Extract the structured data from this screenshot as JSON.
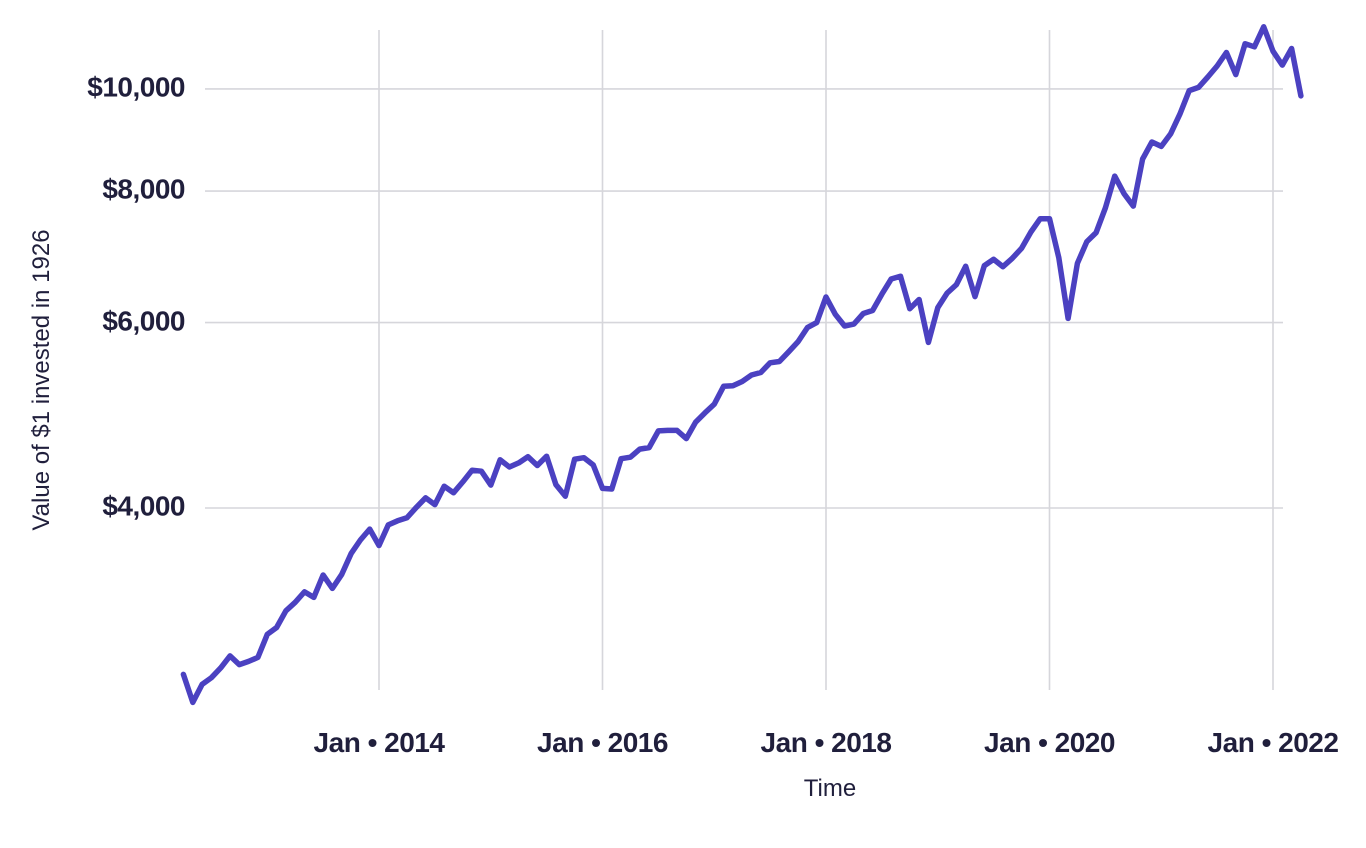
{
  "chart": {
    "y_axis_label": "Value of $1 invested in 1926",
    "x_axis_label": "Time",
    "colors": {
      "line": "#4b41c1",
      "grid": "#d6d6db",
      "text": "#201f3c",
      "background": "#ffffff"
    }
  },
  "chart_data": {
    "type": "line",
    "title": "",
    "xlabel": "Time",
    "ylabel": "Value of $1 invested in 1926",
    "y_scale": "log",
    "grid": true,
    "legend": false,
    "x_ticks": [
      {
        "label": "Jan • 2014",
        "month": "2014-01"
      },
      {
        "label": "Jan • 2016",
        "month": "2016-01"
      },
      {
        "label": "Jan • 2018",
        "month": "2018-01"
      },
      {
        "label": "Jan • 2020",
        "month": "2020-01"
      },
      {
        "label": "Jan • 2022",
        "month": "2022-01"
      }
    ],
    "y_ticks": [
      {
        "label": "$4,000",
        "value": 4000
      },
      {
        "label": "$6,000",
        "value": 6000
      },
      {
        "label": "$8,000",
        "value": 8000
      },
      {
        "label": "$10,000",
        "value": 10000
      }
    ],
    "series": [
      {
        "name": "Value of $1 invested in 1926",
        "frequency": "monthly",
        "start_month": "2012-04",
        "end_month": "2022-04",
        "values": [
          2780,
          2615,
          2720,
          2760,
          2820,
          2895,
          2840,
          2860,
          2885,
          3035,
          3080,
          3195,
          3255,
          3330,
          3290,
          3455,
          3355,
          3460,
          3620,
          3730,
          3820,
          3685,
          3855,
          3890,
          3915,
          4005,
          4090,
          4030,
          4195,
          4135,
          4235,
          4345,
          4335,
          4205,
          4445,
          4375,
          4415,
          4475,
          4390,
          4480,
          4210,
          4105,
          4450,
          4465,
          4395,
          4175,
          4170,
          4455,
          4470,
          4550,
          4565,
          4735,
          4740,
          4740,
          4655,
          4825,
          4925,
          5020,
          5220,
          5225,
          5275,
          5350,
          5380,
          5495,
          5510,
          5630,
          5755,
          5935,
          6000,
          6345,
          6110,
          5955,
          5980,
          6120,
          6160,
          6385,
          6600,
          6640,
          6185,
          6310,
          5745,
          6200,
          6400,
          6520,
          6785,
          6350,
          6795,
          6890,
          6780,
          6905,
          7060,
          7315,
          7530,
          7530,
          6915,
          6055,
          6830,
          7160,
          7305,
          7710,
          8265,
          7955,
          7740,
          8580,
          8905,
          8820,
          9065,
          9465,
          9965,
          10035,
          10265,
          10515,
          10830,
          10320,
          11040,
          10965,
          11455,
          10860,
          10535,
          10925,
          9850
        ]
      }
    ]
  }
}
